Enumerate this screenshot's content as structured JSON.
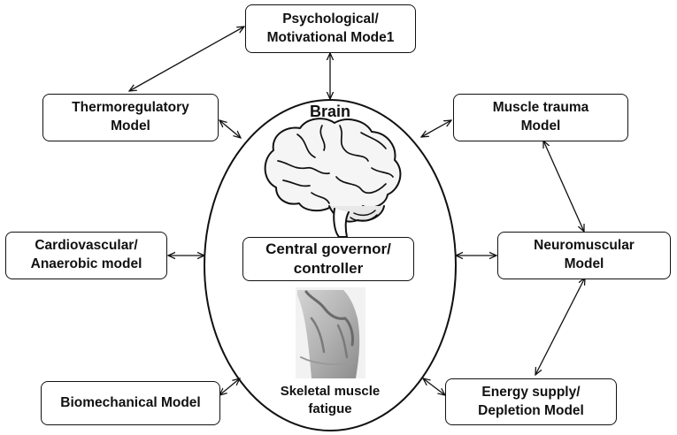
{
  "center": {
    "brain_label": "Brain",
    "governor_label": "Central governor/\ncontroller",
    "muscle_label": "Skeletal muscle\nfatigue"
  },
  "models": {
    "psychological": "Psychological/\nMotivational Mode1",
    "thermoregulatory": "Thermoregulatory\nModel",
    "muscle_trauma": "Muscle trauma\nModel",
    "cardiovascular": "Cardiovascular/\nAnaerobic model",
    "neuromuscular": "Neuromuscular\nModel",
    "biomechanical": "Biomechanical Model",
    "energy_supply": "Energy supply/\nDepletion Model"
  }
}
